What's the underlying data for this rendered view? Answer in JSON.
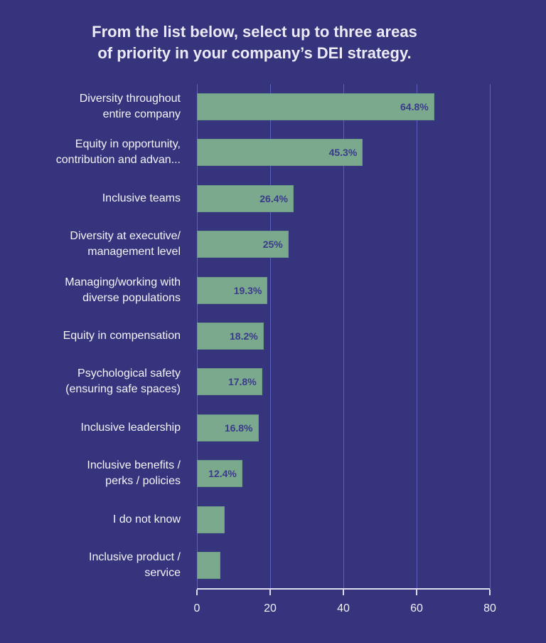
{
  "chart_data": {
    "type": "bar",
    "orientation": "horizontal",
    "title": "From the list below, select up to three areas\nof priority in your company’s DEI strategy.",
    "categories": [
      "Diversity throughout\nentire company",
      "Equity in opportunity,\ncontribution and advan...",
      "Inclusive teams",
      "Diversity at executive/\nmanagement level",
      "Managing/working with\ndiverse populations",
      "Equity in compensation",
      "Psychological safety\n(ensuring safe spaces)",
      "Inclusive leadership",
      "Inclusive benefits /\nperks / policies",
      "I do not know",
      "Inclusive product /\nservice"
    ],
    "values": [
      64.8,
      45.3,
      26.4,
      25,
      19.3,
      18.2,
      17.8,
      16.8,
      12.4,
      7.5,
      6.5
    ],
    "data_labels": [
      "64.8%",
      "45.3%",
      "26.4%",
      "25%",
      "19.3%",
      "18.2%",
      "17.8%",
      "16.8%",
      "12.4%",
      "",
      ""
    ],
    "xlim": [
      0,
      80
    ],
    "xticks": [
      "0",
      "20",
      "40",
      "60",
      "80"
    ],
    "xlabel": "",
    "ylabel": "",
    "grid": "vertical",
    "colors": {
      "background": "#35347c",
      "bar": "#7aa98e",
      "data_label": "#3b3b8a",
      "grid": "#5b60c0"
    }
  }
}
